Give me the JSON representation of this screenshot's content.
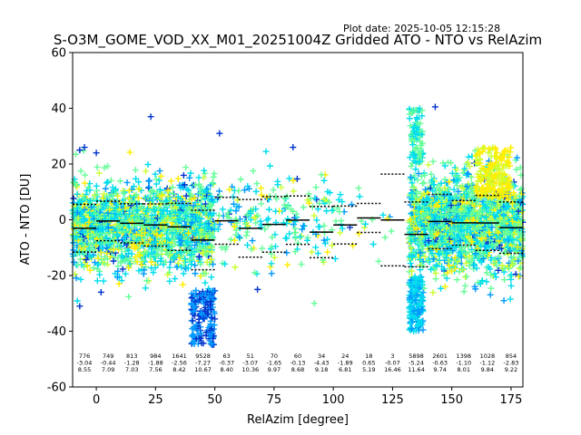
{
  "plot_date": "Plot date: 2025-10-05 12:15:28",
  "chart_data": {
    "type": "scatter",
    "title": "S-O3M_GOME_VOD_XX_M01_20251004Z Gridded ATO - NTO vs RelAzim",
    "xlabel": "RelAzim [degree]",
    "ylabel": "ATO - NTO [DU]",
    "xlim": [
      -10,
      180
    ],
    "ylim": [
      -60,
      60
    ],
    "xticks": [
      0,
      25,
      50,
      75,
      100,
      125,
      150,
      175
    ],
    "yticks": [
      -60,
      -40,
      -20,
      0,
      20,
      40,
      60
    ],
    "grid": false,
    "colormap": [
      "#0033cc",
      "#0099ff",
      "#00ddee",
      "#66ff99",
      "#ccff33",
      "#ffee00"
    ],
    "bins": [
      {
        "x0": -10,
        "x1": 0,
        "count": "776",
        "mean": -3.04,
        "std": 8.55
      },
      {
        "x0": 0,
        "x1": 10,
        "count": "749",
        "mean": -0.44,
        "std": 7.09
      },
      {
        "x0": 10,
        "x1": 20,
        "count": "813",
        "mean": -1.28,
        "std": 7.03
      },
      {
        "x0": 20,
        "x1": 30,
        "count": "984",
        "mean": -1.88,
        "std": 7.56
      },
      {
        "x0": 30,
        "x1": 40,
        "count": "1641",
        "mean": -2.56,
        "std": 8.42
      },
      {
        "x0": 40,
        "x1": 50,
        "count": "9528",
        "mean": -7.27,
        "std": 10.67
      },
      {
        "x0": 50,
        "x1": 60,
        "count": "63",
        "mean": -0.37,
        "std": 8.4
      },
      {
        "x0": 60,
        "x1": 70,
        "count": "51",
        "mean": -3.07,
        "std": 10.36
      },
      {
        "x0": 70,
        "x1": 80,
        "count": "70",
        "mean": -1.65,
        "std": 9.97
      },
      {
        "x0": 80,
        "x1": 90,
        "count": "60",
        "mean": -0.13,
        "std": 8.68
      },
      {
        "x0": 90,
        "x1": 100,
        "count": "34",
        "mean": -4.43,
        "std": 9.18
      },
      {
        "x0": 100,
        "x1": 110,
        "count": "24",
        "mean": -1.89,
        "std": 6.81
      },
      {
        "x0": 110,
        "x1": 120,
        "count": "18",
        "mean": 0.65,
        "std": 5.19
      },
      {
        "x0": 120,
        "x1": 130,
        "count": "3",
        "mean": -0.07,
        "std": 16.46
      },
      {
        "x0": 130,
        "x1": 140,
        "count": "5898",
        "mean": -5.24,
        "std": 11.64
      },
      {
        "x0": 140,
        "x1": 150,
        "count": "2601",
        "mean": -0.63,
        "std": 9.74
      },
      {
        "x0": 150,
        "x1": 160,
        "count": "1398",
        "mean": -1.1,
        "std": 8.01
      },
      {
        "x0": 160,
        "x1": 170,
        "count": "1028",
        "mean": -1.12,
        "std": 9.84
      },
      {
        "x0": 170,
        "x1": 180,
        "count": "854",
        "mean": -2.83,
        "std": 9.22
      }
    ],
    "dense_regions": [
      {
        "x0": -10,
        "x1": 50,
        "y_mean": -2.5,
        "y_spread": 22
      },
      {
        "x0": 132,
        "x1": 180,
        "y_mean": -1.5,
        "y_spread": 24
      }
    ],
    "sparse_region": {
      "x0": 50,
      "x1": 130,
      "y_mean": -1,
      "y_spread": 14
    }
  }
}
